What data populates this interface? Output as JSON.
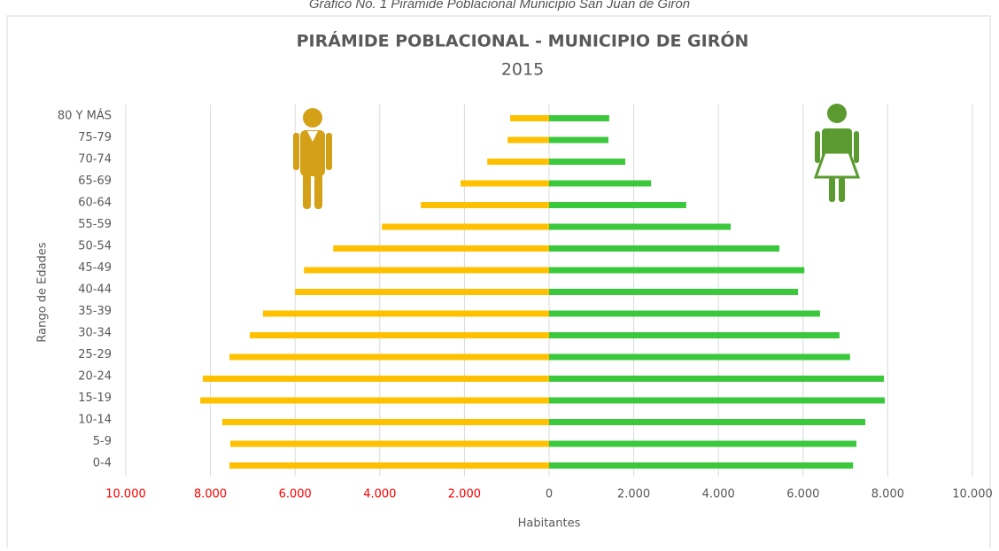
{
  "caption": "Gráfico No. 1 Pirámide Poblacional Municipio San Juan de Girón",
  "chart_data": {
    "type": "pyramid",
    "title": "PIRÁMIDE POBLACIONAL - MUNICIPIO DE GIRÓN",
    "subtitle": "2015",
    "x_label": "Habitantes",
    "y_label": "Rango de Edades",
    "categories": [
      "80 Y MÁS",
      "75-79",
      "70-74",
      "65-69",
      "60-64",
      "55-59",
      "50-54",
      "45-49",
      "40-44",
      "35-39",
      "30-34",
      "25-29",
      "20-24",
      "15-19",
      "10-14",
      "5-9",
      "0-4"
    ],
    "series": [
      {
        "color": "#ffc000",
        "values": [
          -920,
          -980,
          -1460,
          -2090,
          -3030,
          -3950,
          -5100,
          -5790,
          -6000,
          -6760,
          -7070,
          -7550,
          -8180,
          -8240,
          -7720,
          -7530,
          -7550
        ]
      },
      {
        "color": "#3cc83c",
        "values": [
          1420,
          1400,
          1800,
          2410,
          3240,
          4290,
          5440,
          6030,
          5880,
          6400,
          6860,
          7110,
          7910,
          7930,
          7470,
          7260,
          7180
        ]
      }
    ],
    "xlim": [
      -10000,
      10000
    ],
    "xticks": [
      {
        "value": -10000,
        "label": "10.000"
      },
      {
        "value": -8000,
        "label": "8.000"
      },
      {
        "value": -6000,
        "label": "6.000"
      },
      {
        "value": -4000,
        "label": "4.000"
      },
      {
        "value": -2000,
        "label": "2.000"
      },
      0,
      {
        "value": 2000,
        "label": "2.000"
      },
      {
        "value": 4000,
        "label": "4.000"
      },
      {
        "value": 6000,
        "label": "6.000"
      },
      {
        "value": 8000,
        "label": "8.000"
      },
      {
        "value": 10000,
        "label": "10.000"
      }
    ],
    "negative_tick_color": "#ff0000",
    "grid": true
  }
}
